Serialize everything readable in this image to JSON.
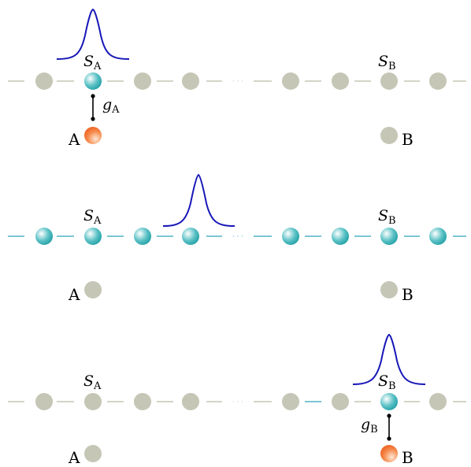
{
  "labels": {
    "SA_main": "S",
    "SA_sub": "A",
    "SB_main": "S",
    "SB_sub": "B",
    "A": "A",
    "B": "B",
    "gA_main": "g",
    "gA_sub": "A",
    "gB_main": "g",
    "gB_sub": "B",
    "ellipsis": "· · ·"
  },
  "colors": {
    "site_gray": "#c5c6b5",
    "line_gray": "#c5c6b5",
    "site_teal": "#1fa7ad",
    "line_teal": "#4db3c3",
    "atom_orange": "#f26b2d",
    "pulse_blue": "#1717b8",
    "coupling": "#000000"
  },
  "panels": [
    {
      "name": "initial-state",
      "excited_atom": "A",
      "teal_sites": [
        "S_A"
      ],
      "teal_chain": false,
      "pulse_over": "S_A",
      "coupling": "g_A"
    },
    {
      "name": "propagation",
      "excited_atom": null,
      "teal_sites": "all",
      "teal_chain": true,
      "pulse_over": "middle",
      "coupling": null
    },
    {
      "name": "final-state",
      "excited_atom": "B",
      "teal_sites": [
        "S_B"
      ],
      "teal_chain": false,
      "pulse_over": "S_B",
      "coupling": "g_B"
    }
  ]
}
